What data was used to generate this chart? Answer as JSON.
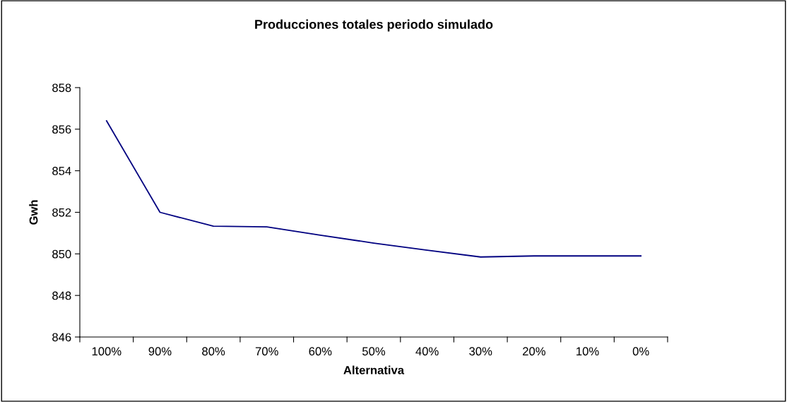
{
  "chart_data": {
    "type": "line",
    "title": "Producciones totales periodo simulado",
    "xlabel": "Alternativa",
    "ylabel": "Gwh",
    "categories": [
      "100%",
      "90%",
      "80%",
      "70%",
      "60%",
      "50%",
      "40%",
      "30%",
      "20%",
      "10%",
      "0%"
    ],
    "series": [
      {
        "color": "#000080",
        "values": [
          856.4,
          852.0,
          851.33,
          851.3,
          850.9,
          850.52,
          850.18,
          849.85,
          849.9,
          849.9,
          849.9
        ]
      }
    ],
    "ylim": [
      846,
      858
    ],
    "yticks": [
      846,
      848,
      850,
      852,
      854,
      856,
      858
    ],
    "grid": false,
    "legend": false,
    "marker": "none",
    "line_style": "solid"
  }
}
